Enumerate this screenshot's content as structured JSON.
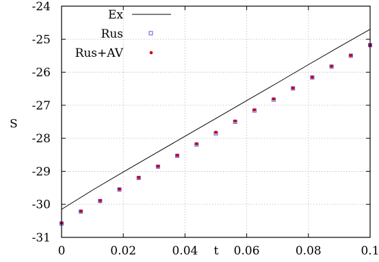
{
  "chart_data": {
    "type": "line",
    "title": "",
    "xlabel": "t",
    "ylabel": "S",
    "xlim": [
      0,
      0.1
    ],
    "ylim": [
      -31,
      -24
    ],
    "grid": true,
    "legend_placement": "top-left",
    "x_ticks": [
      "0",
      "0.02",
      "0.04",
      "0.06",
      "0.08",
      "0.1"
    ],
    "x_tick_values": [
      0,
      0.02,
      0.04,
      0.06,
      0.08,
      0.1
    ],
    "y_ticks": [
      "-24",
      "-25",
      "-26",
      "-27",
      "-28",
      "-29",
      "-30",
      "-31"
    ],
    "y_tick_values": [
      -24,
      -25,
      -26,
      -27,
      -28,
      -29,
      -30,
      -31
    ],
    "series": [
      {
        "name": "Ex",
        "kind": "line",
        "color": "#000000",
        "x": [
          0,
          0.01,
          0.02,
          0.03,
          0.04,
          0.05,
          0.06,
          0.07,
          0.08,
          0.09,
          0.1
        ],
        "y": [
          -30.15,
          -29.57,
          -29.02,
          -28.48,
          -27.94,
          -27.4,
          -26.86,
          -26.32,
          -25.77,
          -25.23,
          -24.7
        ]
      },
      {
        "name": "Rus",
        "kind": "marker",
        "marker": "open-square",
        "color": "#5555dd",
        "x": [
          0,
          0.00625,
          0.0125,
          0.01875,
          0.025,
          0.03125,
          0.0375,
          0.04375,
          0.05,
          0.05625,
          0.0625,
          0.06875,
          0.075,
          0.08125,
          0.0875,
          0.09375,
          0.1
        ],
        "y": [
          -30.58,
          -30.22,
          -29.9,
          -29.55,
          -29.2,
          -28.86,
          -28.53,
          -28.19,
          -27.85,
          -27.5,
          -27.16,
          -26.83,
          -26.49,
          -26.16,
          -25.83,
          -25.5,
          -25.18
        ]
      },
      {
        "name": "Rus+AV",
        "kind": "marker",
        "marker": "dot",
        "color": "#cc0000",
        "x": [
          0,
          0.00625,
          0.0125,
          0.01875,
          0.025,
          0.03125,
          0.0375,
          0.04375,
          0.05,
          0.05625,
          0.0625,
          0.06875,
          0.075,
          0.08125,
          0.0875,
          0.09375,
          0.1
        ],
        "y": [
          -30.57,
          -30.21,
          -29.89,
          -29.54,
          -29.19,
          -28.85,
          -28.52,
          -28.17,
          -27.82,
          -27.48,
          -27.14,
          -26.81,
          -26.48,
          -26.15,
          -25.82,
          -25.49,
          -25.18
        ]
      }
    ]
  }
}
